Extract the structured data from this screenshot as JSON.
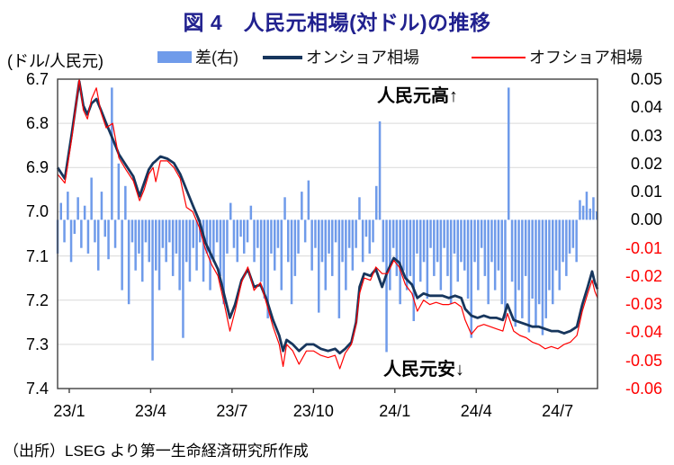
{
  "title": "図 4　人民元相場(対ドル)の推移",
  "axis_unit_label": "(ドル/人民元)",
  "annotations": {
    "top": "人民元高↑",
    "bottom": "人民元安↓"
  },
  "source": "（出所）LSEG より第一生命経済研究所作成",
  "colors": {
    "title": "#21218F",
    "bar": "#6F9BEA",
    "onshore": "#17365D",
    "offshore": "#FF0000",
    "grid": "#D9D9D9",
    "border": "#404040",
    "negative_tick": "#FF0000",
    "positive_tick": "#000000"
  },
  "legend": [
    {
      "label": "差(右)",
      "type": "bar"
    },
    {
      "label": "オンショア相場",
      "type": "line-thick"
    },
    {
      "label": "オフショア相場",
      "type": "line-thin"
    }
  ],
  "chart_data": {
    "type": "combo",
    "title": "図 4  人民元相場(対ドル)の推移",
    "x_unit": "months since plot start (Jan 2023), data through mid-Aug 2024",
    "x_max": 19.9,
    "x_ticks": [
      {
        "label": "23/1",
        "t": 0.43
      },
      {
        "label": "23/4",
        "t": 3.43
      },
      {
        "label": "23/7",
        "t": 6.43
      },
      {
        "label": "23/10",
        "t": 9.43
      },
      {
        "label": "24/1",
        "t": 12.43
      },
      {
        "label": "24/4",
        "t": 15.43
      },
      {
        "label": "24/7",
        "t": 18.43
      }
    ],
    "left_axis": {
      "labels": [
        "6.7",
        "6.8",
        "6.9",
        "7.0",
        "7.1",
        "7.2",
        "7.3",
        "7.4"
      ],
      "min": 6.7,
      "max": 7.4,
      "inverted": true,
      "gridlines": [
        6.8,
        6.9,
        7.0,
        7.1,
        7.2,
        7.3
      ]
    },
    "right_axis": {
      "labels": [
        "0.05",
        "0.04",
        "0.03",
        "0.02",
        "0.01",
        "0.00",
        "-0.01",
        "-0.02",
        "-0.03",
        "-0.04",
        "-0.05",
        "-0.06"
      ],
      "min": -0.06,
      "max": 0.05
    },
    "points_format": [
      "t_months",
      "onshore_cny_per_usd",
      "offshore_cnh_per_usd"
    ],
    "points": [
      [
        0.0,
        6.9,
        6.915
      ],
      [
        0.27,
        6.925,
        6.935
      ],
      [
        0.53,
        6.82,
        6.83
      ],
      [
        0.8,
        6.705,
        6.7
      ],
      [
        0.95,
        6.76,
        6.77
      ],
      [
        1.1,
        6.78,
        6.79
      ],
      [
        1.25,
        6.755,
        6.745
      ],
      [
        1.43,
        6.745,
        6.72
      ],
      [
        1.6,
        6.77,
        6.775
      ],
      [
        1.79,
        6.8,
        6.81
      ],
      [
        2.03,
        6.835,
        6.8
      ],
      [
        2.26,
        6.87,
        6.878
      ],
      [
        2.52,
        6.895,
        6.905
      ],
      [
        2.79,
        6.92,
        6.93
      ],
      [
        3.02,
        6.965,
        6.975
      ],
      [
        3.19,
        6.935,
        6.95
      ],
      [
        3.36,
        6.905,
        6.915
      ],
      [
        3.52,
        6.89,
        6.9
      ],
      [
        3.62,
        6.885,
        6.932
      ],
      [
        3.79,
        6.875,
        6.885
      ],
      [
        4.05,
        6.88,
        6.885
      ],
      [
        4.29,
        6.89,
        6.9
      ],
      [
        4.52,
        6.915,
        6.925
      ],
      [
        4.75,
        6.95,
        6.99
      ],
      [
        4.98,
        6.985,
        7.0
      ],
      [
        5.22,
        7.02,
        7.035
      ],
      [
        5.45,
        7.07,
        7.085
      ],
      [
        5.68,
        7.1,
        7.12
      ],
      [
        5.91,
        7.13,
        7.145
      ],
      [
        6.15,
        7.19,
        7.21
      ],
      [
        6.35,
        7.24,
        7.27
      ],
      [
        6.54,
        7.21,
        7.225
      ],
      [
        6.78,
        7.155,
        7.16
      ],
      [
        7.01,
        7.13,
        7.125
      ],
      [
        7.24,
        7.17,
        7.178
      ],
      [
        7.48,
        7.165,
        7.16
      ],
      [
        7.71,
        7.2,
        7.21
      ],
      [
        7.94,
        7.245,
        7.26
      ],
      [
        8.17,
        7.28,
        7.3
      ],
      [
        8.31,
        7.315,
        7.35
      ],
      [
        8.44,
        7.29,
        7.3
      ],
      [
        8.67,
        7.3,
        7.315
      ],
      [
        8.9,
        7.315,
        7.345
      ],
      [
        9.17,
        7.3,
        7.315
      ],
      [
        9.44,
        7.3,
        7.315
      ],
      [
        9.7,
        7.31,
        7.325
      ],
      [
        9.97,
        7.315,
        7.33
      ],
      [
        10.23,
        7.31,
        7.325
      ],
      [
        10.4,
        7.32,
        7.355
      ],
      [
        10.6,
        7.31,
        7.32
      ],
      [
        10.83,
        7.295,
        7.3
      ],
      [
        11.0,
        7.25,
        7.255
      ],
      [
        11.13,
        7.17,
        7.185
      ],
      [
        11.3,
        7.14,
        7.15
      ],
      [
        11.53,
        7.145,
        7.155
      ],
      [
        11.73,
        7.13,
        7.125
      ],
      [
        11.96,
        7.17,
        7.14
      ],
      [
        12.16,
        7.135,
        7.14
      ],
      [
        12.39,
        7.105,
        7.11
      ],
      [
        12.59,
        7.115,
        7.125
      ],
      [
        12.82,
        7.15,
        7.165
      ],
      [
        13.06,
        7.165,
        7.185
      ],
      [
        13.26,
        7.195,
        7.225
      ],
      [
        13.49,
        7.185,
        7.2
      ],
      [
        13.72,
        7.19,
        7.21
      ],
      [
        13.95,
        7.19,
        7.205
      ],
      [
        14.19,
        7.19,
        7.21
      ],
      [
        14.42,
        7.195,
        7.21
      ],
      [
        14.65,
        7.19,
        7.205
      ],
      [
        14.88,
        7.195,
        7.215
      ],
      [
        15.02,
        7.22,
        7.245
      ],
      [
        15.25,
        7.235,
        7.277
      ],
      [
        15.48,
        7.24,
        7.26
      ],
      [
        15.71,
        7.235,
        7.255
      ],
      [
        15.95,
        7.24,
        7.26
      ],
      [
        16.18,
        7.24,
        7.265
      ],
      [
        16.41,
        7.245,
        7.27
      ],
      [
        16.58,
        7.21,
        7.23
      ],
      [
        16.81,
        7.245,
        7.27
      ],
      [
        17.04,
        7.25,
        7.28
      ],
      [
        17.27,
        7.255,
        7.285
      ],
      [
        17.5,
        7.26,
        7.295
      ],
      [
        17.73,
        7.26,
        7.3
      ],
      [
        17.97,
        7.265,
        7.31
      ],
      [
        18.2,
        7.27,
        7.305
      ],
      [
        18.44,
        7.27,
        7.31
      ],
      [
        18.67,
        7.275,
        7.3
      ],
      [
        18.9,
        7.27,
        7.295
      ],
      [
        19.14,
        7.26,
        7.28
      ],
      [
        19.34,
        7.21,
        7.225
      ],
      [
        19.54,
        7.17,
        7.185
      ],
      [
        19.7,
        7.135,
        7.155
      ],
      [
        19.8,
        7.16,
        7.18
      ],
      [
        19.9,
        7.175,
        7.195
      ]
    ],
    "diff_bars": {
      "name": "差(右) = オンショア − オフショア",
      "axis": "right",
      "t0": 0.0,
      "dt": 0.125,
      "values": [
        -0.012,
        0.006,
        -0.008,
        0.01,
        -0.015,
        -0.005,
        0.008,
        -0.01,
        0.005,
        -0.012,
        0.015,
        -0.008,
        -0.018,
        0.01,
        -0.006,
        -0.014,
        0.047,
        -0.01,
        0.02,
        -0.025,
        0.012,
        -0.03,
        -0.008,
        -0.018,
        -0.012,
        -0.022,
        -0.008,
        -0.015,
        -0.05,
        -0.018,
        -0.025,
        -0.01,
        -0.015,
        -0.008,
        -0.02,
        -0.012,
        -0.025,
        -0.042,
        -0.015,
        -0.022,
        -0.01,
        -0.018,
        -0.008,
        -0.022,
        -0.012,
        -0.025,
        -0.015,
        -0.008,
        -0.02,
        -0.03,
        -0.012,
        0.006,
        -0.01,
        -0.015,
        -0.006,
        -0.012,
        -0.008,
        0.005,
        -0.015,
        -0.01,
        -0.022,
        -0.028,
        -0.035,
        -0.012,
        -0.018,
        -0.01,
        -0.025,
        0.008,
        -0.015,
        -0.03,
        -0.02,
        -0.012,
        0.01,
        -0.008,
        0.014,
        -0.018,
        -0.01,
        -0.033,
        -0.015,
        -0.025,
        -0.012,
        -0.02,
        -0.008,
        -0.035,
        -0.015,
        -0.025,
        -0.01,
        -0.018,
        -0.01,
        0.008,
        -0.015,
        -0.006,
        -0.012,
        -0.008,
        0.012,
        0.035,
        -0.015,
        -0.047,
        -0.025,
        -0.01,
        -0.02,
        -0.03,
        -0.018,
        -0.025,
        -0.02,
        -0.036,
        -0.012,
        -0.022,
        -0.015,
        -0.028,
        -0.01,
        -0.02,
        -0.015,
        -0.025,
        -0.01,
        -0.02,
        -0.03,
        -0.012,
        -0.022,
        -0.015,
        -0.018,
        -0.028,
        -0.042,
        -0.015,
        -0.025,
        -0.01,
        -0.02,
        -0.03,
        -0.015,
        -0.025,
        -0.018,
        -0.03,
        -0.035,
        0.047,
        -0.022,
        -0.038,
        -0.025,
        -0.035,
        -0.02,
        -0.04,
        -0.028,
        -0.038,
        -0.03,
        -0.041,
        -0.035,
        -0.025,
        -0.03,
        -0.018,
        -0.025,
        -0.015,
        -0.02,
        -0.012,
        -0.01,
        -0.015,
        0.007,
        0.005,
        0.01,
        0.004,
        0.008,
        0.003
      ]
    }
  }
}
